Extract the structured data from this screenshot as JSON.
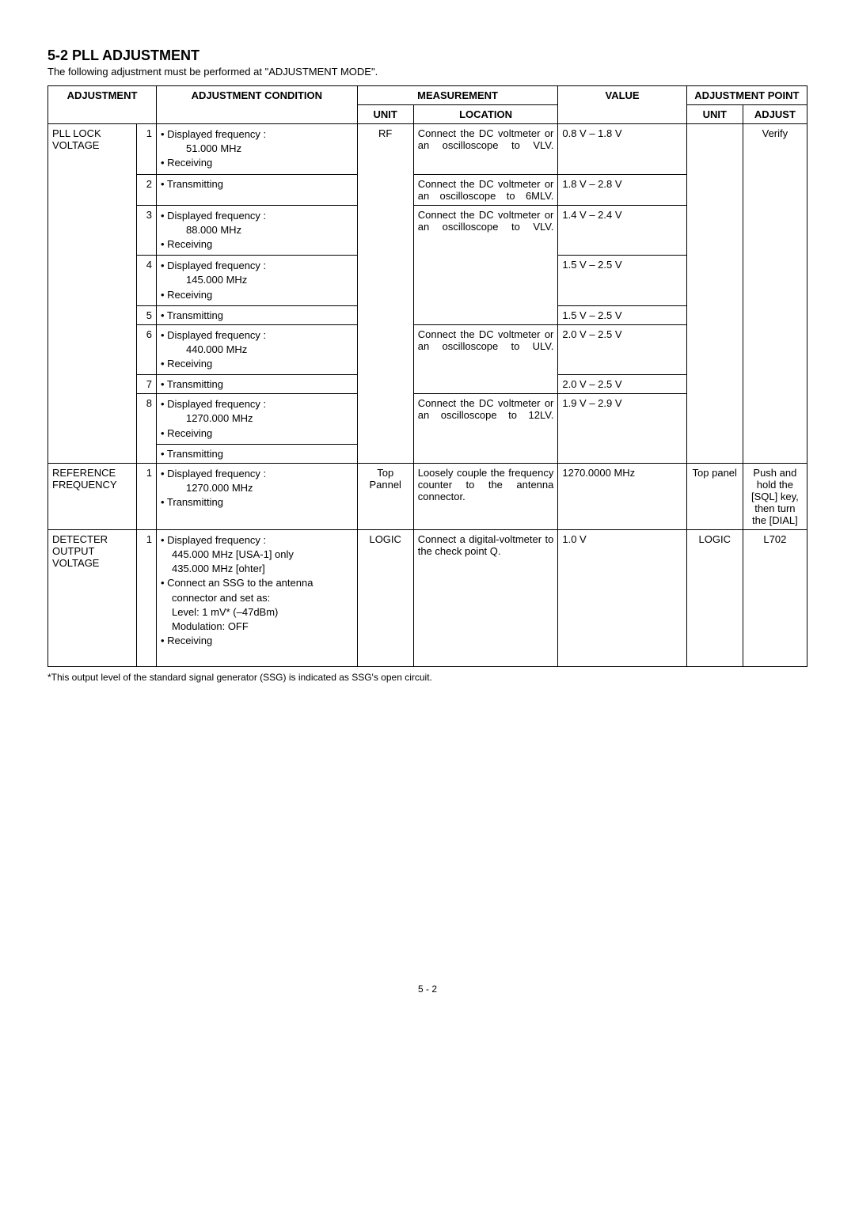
{
  "heading": "5-2 PLL ADJUSTMENT",
  "subtext": "The following adjustment must be performed at \"ADJUSTMENT MODE\".",
  "headers": {
    "adjustment": "ADJUSTMENT",
    "adjustment_condition": "ADJUSTMENT CONDITION",
    "measurement": "MEASUREMENT",
    "value": "VALUE",
    "adjustment_point": "ADJUSTMENT POINT",
    "unit": "UNIT",
    "location": "LOCATION",
    "adjust": "ADJUST"
  },
  "pll": {
    "label": "PLL LOCK VOLTAGE",
    "r1": {
      "step": "1",
      "cond_l1": "• Displayed frequency :",
      "cond_freq": "51.000 MHz",
      "cond_l2": "• Receiving",
      "munit": "RF",
      "loc": "Connect the DC voltmeter or an oscilloscope to VLV.",
      "val": "0.8 V – 1.8 V",
      "adjust": "Verify"
    },
    "r2": {
      "step": "2",
      "cond": "• Transmitting",
      "loc": "Connect the DC voltmeter or an oscilloscope to 6MLV.",
      "val": "1.8 V – 2.8 V"
    },
    "r3": {
      "step": "3",
      "cond_l1": "• Displayed frequency :",
      "cond_freq": "88.000 MHz",
      "cond_l2": "• Receiving",
      "loc": "Connect the DC voltmeter or an oscilloscope to VLV.",
      "val": "1.4 V – 2.4 V"
    },
    "r4": {
      "step": "4",
      "cond_l1": "• Displayed frequency :",
      "cond_freq": "145.000 MHz",
      "cond_l2": "• Receiving",
      "val": "1.5 V – 2.5 V"
    },
    "r5": {
      "step": "5",
      "cond": "• Transmitting",
      "val": "1.5 V – 2.5 V"
    },
    "r6": {
      "step": "6",
      "cond_l1": "• Displayed frequency :",
      "cond_freq": "440.000 MHz",
      "cond_l2": "• Receiving",
      "loc": "Connect the DC voltmeter or an oscilloscope to ULV.",
      "val": "2.0 V – 2.5 V"
    },
    "r7": {
      "step": "7",
      "cond": "• Transmitting",
      "val": "2.0 V – 2.5 V"
    },
    "r8": {
      "step": "8",
      "cond_l1": "• Displayed frequency :",
      "cond_freq": "1270.000 MHz",
      "cond_l2": "• Receiving",
      "loc": "Connect the DC voltmeter or an oscilloscope to 12LV.",
      "val": "1.9 V – 2.9 V"
    },
    "r9": {
      "cond": "• Transmitting"
    }
  },
  "ref": {
    "label": "REFERENCE FREQUENCY",
    "step": "1",
    "cond_l1": "• Displayed frequency :",
    "cond_freq": "1270.000 MHz",
    "cond_l2": "• Transmitting",
    "munit": "Top Pannel",
    "loc": "Loosely couple the frequency counter to the antenna connector.",
    "val": "1270.0000 MHz",
    "aunit": "Top panel",
    "adjust": "Push and hold the [SQL] key, then turn the [DIAL]"
  },
  "det": {
    "label": "DETECTER OUTPUT VOLTAGE",
    "step": "1",
    "c_l1": "• Displayed frequency :",
    "c_l2": "445.000 MHz [USA-1] only",
    "c_l3": "435.000 MHz [ohter]",
    "c_l4": "• Connect an SSG to the antenna",
    "c_l5": "connector and set as:",
    "c_l6_k": "Level",
    "c_l6_v": ": 1 mV* (–47dBm)",
    "c_l7_k": "Modulation",
    "c_l7_v": ": OFF",
    "c_l8": "• Receiving",
    "munit": "LOGIC",
    "loc": "Connect a digital-voltmeter to the check point Q.",
    "val": "1.0 V",
    "aunit": "LOGIC",
    "adjust": "L702"
  },
  "footnote": "*This output level of the standard signal generator (SSG) is indicated as SSG's open circuit.",
  "page_number": "5 - 2"
}
